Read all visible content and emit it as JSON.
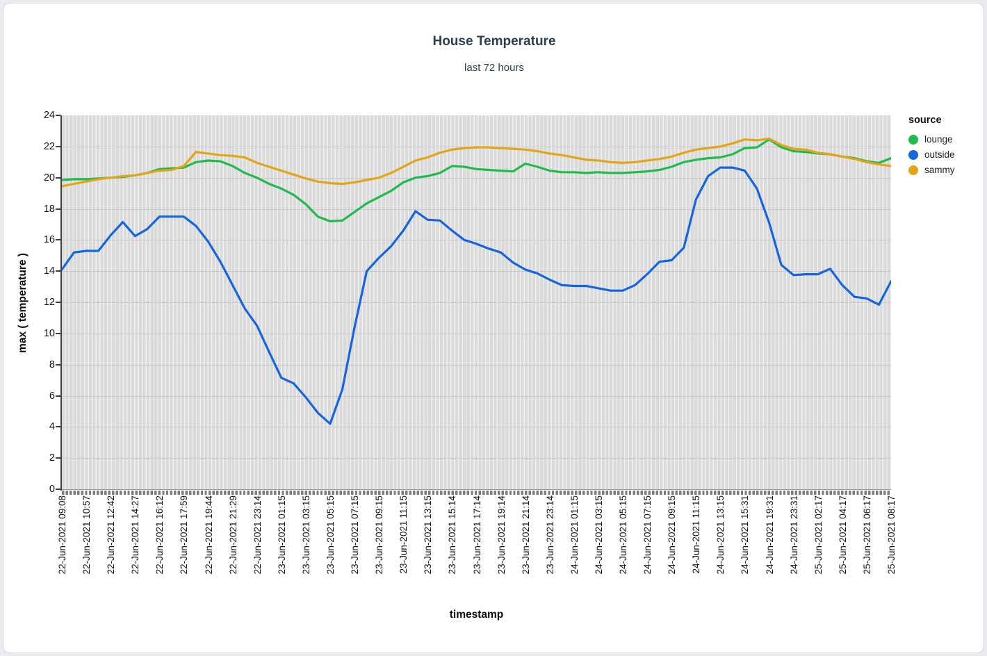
{
  "page": {
    "title": "House Temperature",
    "subtitle": "last 72 hours"
  },
  "chart_data": {
    "type": "line",
    "title": "House Temperature",
    "subtitle": "last 72 hours",
    "xlabel": "timestamp",
    "ylabel": "max ( temperature )",
    "ylim": [
      0,
      24
    ],
    "y_ticks": [
      0,
      2,
      4,
      6,
      8,
      10,
      12,
      14,
      16,
      18,
      20,
      22,
      24
    ],
    "grid": "vertical category stripes on gray panel, horizontal gridlines every 2 units",
    "legend_title": "source",
    "legend_position": "right",
    "label_every": 2,
    "x_tick_labels": [
      "22-Jun-2021 09:08",
      "22-Jun-2021 10:57",
      "22-Jun-2021 12:42",
      "22-Jun-2021 14:27",
      "22-Jun-2021 16:12",
      "22-Jun-2021 17:59",
      "22-Jun-2021 19:44",
      "22-Jun-2021 21:29",
      "22-Jun-2021 23:14",
      "23-Jun-2021 01:15",
      "23-Jun-2021 03:15",
      "23-Jun-2021 05:15",
      "23-Jun-2021 07:15",
      "23-Jun-2021 09:15",
      "23-Jun-2021 11:15",
      "23-Jun-2021 13:15",
      "23-Jun-2021 15:14",
      "23-Jun-2021 17:14",
      "23-Jun-2021 19:14",
      "23-Jun-2021 21:14",
      "23-Jun-2021 23:14",
      "24-Jun-2021 01:15",
      "24-Jun-2021 03:15",
      "24-Jun-2021 05:15",
      "24-Jun-2021 07:15",
      "24-Jun-2021 09:15",
      "24-Jun-2021 11:15",
      "24-Jun-2021 13:15",
      "24-Jun-2021 15:31",
      "24-Jun-2021 19:31",
      "24-Jun-2021 23:31",
      "25-Jun-2021 02:17",
      "25-Jun-2021 04:17",
      "25-Jun-2021 06:17",
      "25-Jun-2021 08:17"
    ],
    "series": [
      {
        "name": "lounge",
        "color": "#20bb4e",
        "values": [
          19.85,
          19.9,
          19.9,
          19.95,
          20.0,
          20.05,
          20.15,
          20.3,
          20.55,
          20.6,
          20.65,
          21.0,
          21.1,
          21.05,
          20.75,
          20.3,
          20.0,
          19.6,
          19.3,
          18.9,
          18.3,
          17.5,
          17.2,
          17.25,
          17.8,
          18.35,
          18.75,
          19.15,
          19.7,
          20.0,
          20.1,
          20.3,
          20.75,
          20.7,
          20.55,
          20.5,
          20.45,
          20.4,
          20.9,
          20.7,
          20.45,
          20.35,
          20.35,
          20.3,
          20.35,
          20.3,
          20.3,
          20.35,
          20.4,
          20.5,
          20.7,
          21.0,
          21.15,
          21.25,
          21.3,
          21.5,
          21.9,
          21.95,
          22.45,
          21.95,
          21.7,
          21.65,
          21.55,
          21.5,
          21.35,
          21.25,
          21.05,
          20.95,
          21.25
        ]
      },
      {
        "name": "outside",
        "color": "#1565e0",
        "values": [
          14.1,
          15.2,
          15.3,
          15.3,
          16.3,
          17.15,
          16.25,
          16.7,
          17.5,
          17.5,
          17.5,
          16.9,
          15.9,
          14.6,
          13.1,
          11.6,
          10.5,
          8.8,
          7.15,
          6.8,
          5.9,
          4.9,
          4.2,
          6.4,
          10.4,
          14.0,
          14.85,
          15.6,
          16.6,
          17.85,
          17.3,
          17.25,
          16.6,
          16.0,
          15.75,
          15.45,
          15.2,
          14.55,
          14.1,
          13.85,
          13.45,
          13.1,
          13.05,
          13.05,
          12.9,
          12.75,
          12.75,
          13.1,
          13.8,
          14.6,
          14.7,
          15.5,
          18.6,
          20.1,
          20.65,
          20.65,
          20.45,
          19.3,
          17.1,
          14.4,
          13.75,
          13.8,
          13.8,
          14.15,
          13.1,
          12.35,
          12.25,
          11.85,
          13.35
        ]
      },
      {
        "name": "sammy",
        "color": "#e3a417",
        "values": [
          19.45,
          19.6,
          19.75,
          19.9,
          20.0,
          20.1,
          20.15,
          20.3,
          20.45,
          20.5,
          20.75,
          21.65,
          21.55,
          21.45,
          21.4,
          21.3,
          20.95,
          20.7,
          20.45,
          20.2,
          19.95,
          19.75,
          19.65,
          19.6,
          19.7,
          19.85,
          20.0,
          20.3,
          20.7,
          21.1,
          21.3,
          21.6,
          21.8,
          21.9,
          21.95,
          21.95,
          21.9,
          21.85,
          21.8,
          21.7,
          21.55,
          21.45,
          21.3,
          21.15,
          21.1,
          21.0,
          20.95,
          21.0,
          21.1,
          21.2,
          21.35,
          21.6,
          21.8,
          21.9,
          22.0,
          22.2,
          22.45,
          22.4,
          22.5,
          22.1,
          21.85,
          21.8,
          21.6,
          21.5,
          21.35,
          21.2,
          21.0,
          20.85,
          20.75
        ]
      }
    ]
  }
}
